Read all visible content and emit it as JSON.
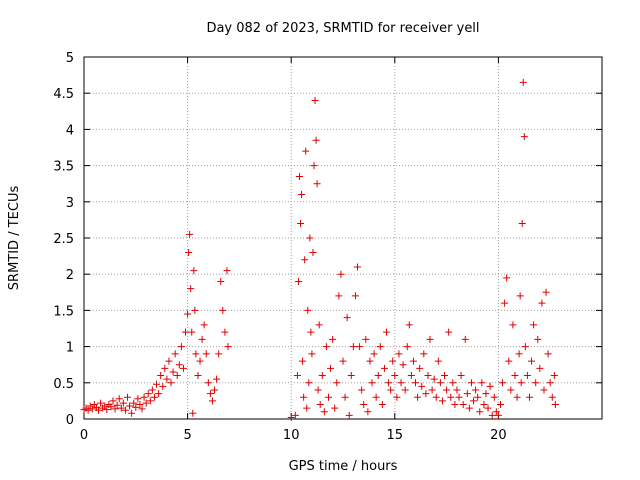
{
  "chart_data": {
    "type": "scatter",
    "title": "Day 082 of 2023, SRMTID for receiver yell",
    "xlabel": "GPS time / hours",
    "ylabel": "SRMTID / TECUs",
    "xlim": [
      0,
      25
    ],
    "ylim": [
      0,
      5
    ],
    "xticks": [
      0,
      5,
      10,
      15,
      20
    ],
    "xtick_labels": [
      "0",
      "5",
      "10",
      "15",
      "20"
    ],
    "yticks": [
      0,
      0.5,
      1,
      1.5,
      2,
      2.5,
      3,
      3.5,
      4,
      4.5,
      5
    ],
    "ytick_labels": [
      "0",
      "0.5",
      "1",
      "1.5",
      "2",
      "2.5",
      "3",
      "3.5",
      "4",
      "4.5",
      "5"
    ],
    "grid": true,
    "marker": "+",
    "color": "#e00000",
    "series": [
      {
        "name": "SRMTID",
        "points": [
          [
            0.0,
            0.13
          ],
          [
            0.1,
            0.15
          ],
          [
            0.2,
            0.12
          ],
          [
            0.3,
            0.18
          ],
          [
            0.4,
            0.14
          ],
          [
            0.5,
            0.2
          ],
          [
            0.6,
            0.16
          ],
          [
            0.7,
            0.12
          ],
          [
            0.8,
            0.22
          ],
          [
            0.9,
            0.15
          ],
          [
            1.0,
            0.18
          ],
          [
            1.1,
            0.13
          ],
          [
            1.2,
            0.2
          ],
          [
            1.3,
            0.17
          ],
          [
            1.4,
            0.25
          ],
          [
            1.5,
            0.14
          ],
          [
            1.6,
            0.19
          ],
          [
            1.7,
            0.28
          ],
          [
            1.8,
            0.15
          ],
          [
            1.9,
            0.22
          ],
          [
            2.0,
            0.12
          ],
          [
            2.1,
            0.3
          ],
          [
            2.2,
            0.18
          ],
          [
            2.3,
            0.08
          ],
          [
            2.4,
            0.22
          ],
          [
            2.5,
            0.16
          ],
          [
            2.6,
            0.28
          ],
          [
            2.7,
            0.2
          ],
          [
            2.8,
            0.14
          ],
          [
            2.9,
            0.3
          ],
          [
            3.0,
            0.22
          ],
          [
            3.1,
            0.35
          ],
          [
            3.2,
            0.25
          ],
          [
            3.3,
            0.4
          ],
          [
            3.4,
            0.3
          ],
          [
            3.5,
            0.48
          ],
          [
            3.6,
            0.35
          ],
          [
            3.7,
            0.6
          ],
          [
            3.8,
            0.45
          ],
          [
            3.9,
            0.7
          ],
          [
            4.0,
            0.55
          ],
          [
            4.1,
            0.8
          ],
          [
            4.2,
            0.5
          ],
          [
            4.3,
            0.65
          ],
          [
            4.4,
            0.9
          ],
          [
            4.5,
            0.6
          ],
          [
            4.6,
            0.75
          ],
          [
            4.7,
            1.0
          ],
          [
            4.8,
            0.7
          ],
          [
            4.9,
            1.2
          ],
          [
            5.0,
            1.45
          ],
          [
            5.05,
            2.3
          ],
          [
            5.1,
            2.55
          ],
          [
            5.15,
            1.8
          ],
          [
            5.2,
            1.2
          ],
          [
            5.25,
            0.08
          ],
          [
            5.3,
            2.05
          ],
          [
            5.35,
            1.5
          ],
          [
            5.4,
            0.9
          ],
          [
            5.5,
            0.6
          ],
          [
            5.6,
            0.8
          ],
          [
            5.7,
            1.1
          ],
          [
            5.8,
            1.3
          ],
          [
            5.9,
            0.9
          ],
          [
            6.0,
            0.5
          ],
          [
            6.1,
            0.35
          ],
          [
            6.2,
            0.25
          ],
          [
            6.3,
            0.4
          ],
          [
            6.4,
            0.55
          ],
          [
            6.5,
            0.9
          ],
          [
            6.6,
            1.9
          ],
          [
            6.7,
            1.5
          ],
          [
            6.8,
            1.2
          ],
          [
            6.9,
            2.05
          ],
          [
            6.95,
            1.0
          ],
          [
            10.0,
            0.02
          ],
          [
            10.2,
            0.05
          ],
          [
            10.3,
            0.6
          ],
          [
            10.35,
            1.9
          ],
          [
            10.4,
            3.35
          ],
          [
            10.45,
            2.7
          ],
          [
            10.5,
            3.1
          ],
          [
            10.55,
            0.8
          ],
          [
            10.6,
            0.3
          ],
          [
            10.65,
            2.2
          ],
          [
            10.7,
            3.7
          ],
          [
            10.75,
            0.15
          ],
          [
            10.8,
            1.5
          ],
          [
            10.85,
            0.5
          ],
          [
            10.9,
            2.5
          ],
          [
            10.95,
            1.2
          ],
          [
            11.0,
            0.9
          ],
          [
            11.05,
            2.3
          ],
          [
            11.1,
            3.5
          ],
          [
            11.15,
            4.4
          ],
          [
            11.2,
            3.85
          ],
          [
            11.25,
            3.25
          ],
          [
            11.3,
            0.4
          ],
          [
            11.35,
            1.3
          ],
          [
            11.4,
            0.2
          ],
          [
            11.5,
            0.6
          ],
          [
            11.6,
            0.1
          ],
          [
            11.7,
            1.0
          ],
          [
            11.8,
            0.3
          ],
          [
            11.9,
            0.7
          ],
          [
            12.0,
            1.1
          ],
          [
            12.1,
            0.15
          ],
          [
            12.2,
            0.5
          ],
          [
            12.3,
            1.7
          ],
          [
            12.4,
            2.0
          ],
          [
            12.5,
            0.8
          ],
          [
            12.6,
            0.3
          ],
          [
            12.7,
            1.4
          ],
          [
            12.8,
            0.05
          ],
          [
            12.9,
            0.6
          ],
          [
            13.0,
            1.0
          ],
          [
            13.1,
            1.7
          ],
          [
            13.2,
            2.1
          ],
          [
            13.3,
            1.0
          ],
          [
            13.4,
            0.4
          ],
          [
            13.5,
            0.2
          ],
          [
            13.6,
            1.1
          ],
          [
            13.7,
            0.1
          ],
          [
            13.8,
            0.8
          ],
          [
            13.9,
            0.5
          ],
          [
            14.0,
            0.9
          ],
          [
            14.1,
            0.3
          ],
          [
            14.2,
            0.6
          ],
          [
            14.3,
            1.0
          ],
          [
            14.4,
            0.2
          ],
          [
            14.5,
            0.7
          ],
          [
            14.6,
            1.2
          ],
          [
            14.7,
            0.5
          ],
          [
            14.8,
            0.4
          ],
          [
            14.9,
            0.8
          ],
          [
            15.0,
            0.6
          ],
          [
            15.1,
            0.3
          ],
          [
            15.2,
            0.9
          ],
          [
            15.3,
            0.5
          ],
          [
            15.4,
            0.75
          ],
          [
            15.5,
            0.4
          ],
          [
            15.6,
            1.0
          ],
          [
            15.7,
            1.3
          ],
          [
            15.8,
            0.6
          ],
          [
            15.9,
            0.8
          ],
          [
            16.0,
            0.5
          ],
          [
            16.1,
            0.3
          ],
          [
            16.2,
            0.7
          ],
          [
            16.3,
            0.45
          ],
          [
            16.4,
            0.9
          ],
          [
            16.5,
            0.35
          ],
          [
            16.6,
            0.6
          ],
          [
            16.7,
            1.1
          ],
          [
            16.8,
            0.4
          ],
          [
            16.9,
            0.55
          ],
          [
            17.0,
            0.3
          ],
          [
            17.1,
            0.8
          ],
          [
            17.2,
            0.5
          ],
          [
            17.3,
            0.25
          ],
          [
            17.4,
            0.6
          ],
          [
            17.5,
            0.4
          ],
          [
            17.6,
            1.2
          ],
          [
            17.7,
            0.3
          ],
          [
            17.8,
            0.5
          ],
          [
            17.9,
            0.2
          ],
          [
            18.0,
            0.4
          ],
          [
            18.1,
            0.3
          ],
          [
            18.2,
            0.6
          ],
          [
            18.3,
            0.2
          ],
          [
            18.4,
            1.1
          ],
          [
            18.5,
            0.35
          ],
          [
            18.6,
            0.15
          ],
          [
            18.7,
            0.5
          ],
          [
            18.8,
            0.25
          ],
          [
            18.9,
            0.4
          ],
          [
            19.0,
            0.3
          ],
          [
            19.1,
            0.1
          ],
          [
            19.2,
            0.5
          ],
          [
            19.3,
            0.2
          ],
          [
            19.4,
            0.35
          ],
          [
            19.5,
            0.15
          ],
          [
            19.6,
            0.45
          ],
          [
            19.7,
            0.05
          ],
          [
            19.8,
            0.3
          ],
          [
            19.9,
            0.1
          ],
          [
            20.0,
            0.05
          ],
          [
            20.1,
            0.2
          ],
          [
            20.2,
            0.5
          ],
          [
            20.3,
            1.6
          ],
          [
            20.4,
            1.95
          ],
          [
            20.5,
            0.8
          ],
          [
            20.6,
            0.4
          ],
          [
            20.7,
            1.3
          ],
          [
            20.8,
            0.6
          ],
          [
            20.9,
            0.3
          ],
          [
            21.0,
            0.9
          ],
          [
            21.05,
            1.7
          ],
          [
            21.1,
            0.5
          ],
          [
            21.15,
            2.7
          ],
          [
            21.2,
            4.65
          ],
          [
            21.25,
            3.9
          ],
          [
            21.3,
            1.0
          ],
          [
            21.4,
            0.6
          ],
          [
            21.5,
            0.3
          ],
          [
            21.6,
            0.8
          ],
          [
            21.7,
            1.3
          ],
          [
            21.8,
            0.5
          ],
          [
            21.9,
            1.1
          ],
          [
            22.0,
            0.7
          ],
          [
            22.1,
            1.6
          ],
          [
            22.2,
            0.4
          ],
          [
            22.3,
            1.75
          ],
          [
            22.4,
            0.9
          ],
          [
            22.5,
            0.5
          ],
          [
            22.6,
            0.3
          ],
          [
            22.7,
            0.6
          ],
          [
            22.75,
            0.2
          ]
        ]
      }
    ]
  }
}
